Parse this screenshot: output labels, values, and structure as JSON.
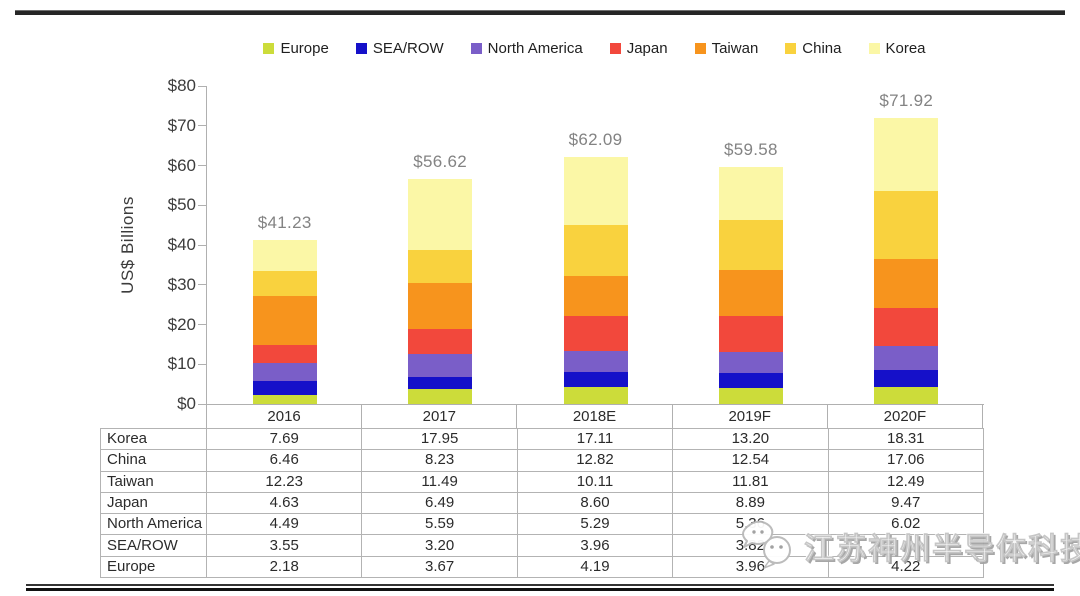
{
  "chart_data": {
    "type": "bar",
    "stacked": true,
    "title": "",
    "ylabel": "US$ Billions",
    "categories": [
      "2016",
      "2017",
      "2018E",
      "2019F",
      "2020F"
    ],
    "series": [
      {
        "name": "Europe",
        "color": "#ccdc3a",
        "values": [
          2.18,
          3.67,
          4.19,
          3.96,
          4.22
        ]
      },
      {
        "name": "SEA/ROW",
        "color": "#1510c9",
        "values": [
          3.55,
          3.2,
          3.96,
          3.82,
          4.35
        ]
      },
      {
        "name": "North America",
        "color": "#7a5ec8",
        "values": [
          4.49,
          5.59,
          5.29,
          5.36,
          6.02
        ]
      },
      {
        "name": "Japan",
        "color": "#f2483c",
        "values": [
          4.63,
          6.49,
          8.6,
          8.89,
          9.47
        ]
      },
      {
        "name": "Taiwan",
        "color": "#f7941d",
        "values": [
          12.23,
          11.49,
          10.11,
          11.81,
          12.49
        ]
      },
      {
        "name": "China",
        "color": "#f9d23e",
        "values": [
          6.46,
          8.23,
          12.82,
          12.54,
          17.06
        ]
      },
      {
        "name": "Korea",
        "color": "#fbf7a6",
        "values": [
          7.69,
          17.95,
          17.11,
          13.2,
          18.31
        ]
      }
    ],
    "totals": [
      "$41.23",
      "$56.62",
      "$62.09",
      "$59.58",
      "$71.92"
    ],
    "yticks": [
      "$0",
      "$10",
      "$20",
      "$30",
      "$40",
      "$50",
      "$60",
      "$70",
      "$80"
    ],
    "ylim": [
      0,
      80
    ],
    "grid": false,
    "legend_position": "top",
    "total_label_color": "#838383"
  },
  "table": {
    "rows": [
      {
        "label": "Korea",
        "cells": [
          "7.69",
          "17.95",
          "17.11",
          "13.20",
          "18.31"
        ]
      },
      {
        "label": "China",
        "cells": [
          "6.46",
          "8.23",
          "12.82",
          "12.54",
          "17.06"
        ]
      },
      {
        "label": "Taiwan",
        "cells": [
          "12.23",
          "11.49",
          "10.11",
          "11.81",
          "12.49"
        ]
      },
      {
        "label": "Japan",
        "cells": [
          "4.63",
          "6.49",
          "8.60",
          "8.89",
          "9.47"
        ]
      },
      {
        "label": "North America",
        "cells": [
          "4.49",
          "5.59",
          "5.29",
          "5.36",
          "6.02"
        ]
      },
      {
        "label": "SEA/ROW",
        "cells": [
          "3.55",
          "3.20",
          "3.96",
          "3.82",
          ""
        ]
      },
      {
        "label": "Europe",
        "cells": [
          "2.18",
          "3.67",
          "4.19",
          "3.96",
          "4.22"
        ]
      }
    ]
  },
  "watermark": {
    "text": "江苏神州半导体科技",
    "logo": "chat-bubbles-logo"
  }
}
